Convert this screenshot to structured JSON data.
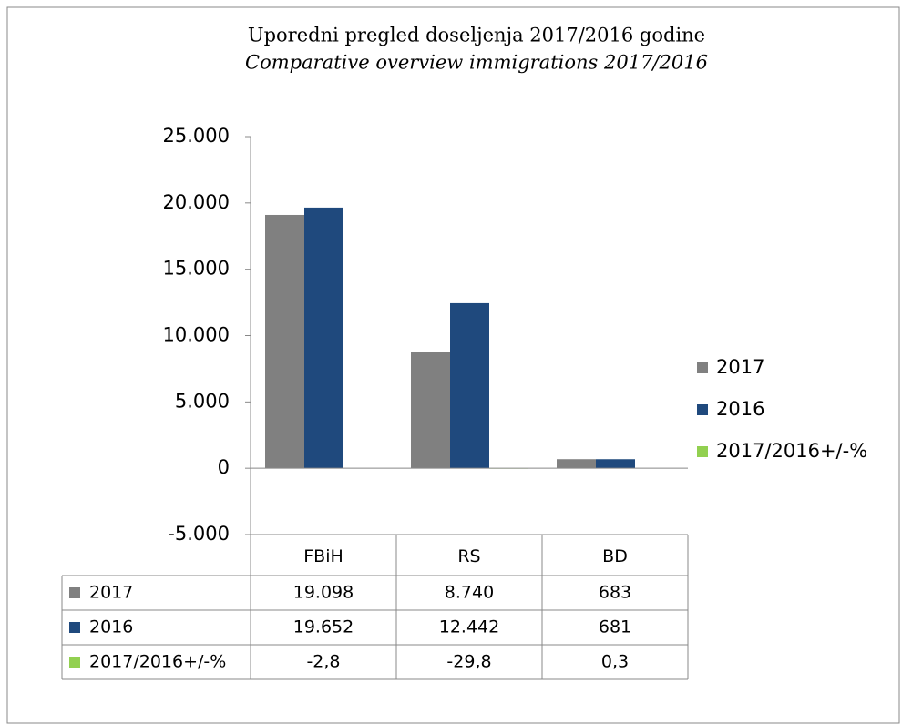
{
  "chart_data": {
    "type": "bar",
    "title": "Uporedni pregled doseljenja 2017/2016 godine",
    "subtitle": "Comparative overview immigrations 2017/2016",
    "categories": [
      "FBiH",
      "RS",
      "BD"
    ],
    "series": [
      {
        "name": "2017",
        "color": "#808080",
        "values": [
          19098,
          8740,
          683
        ],
        "value_labels": [
          "19.098",
          "8.740",
          "683"
        ]
      },
      {
        "name": "2016",
        "color": "#1f497d",
        "values": [
          19652,
          12442,
          681
        ],
        "value_labels": [
          "19.652",
          "12.442",
          "681"
        ]
      },
      {
        "name": "2017/2016+/-%",
        "color": "#92d050",
        "values": [
          -2.8,
          -29.8,
          0.3
        ],
        "value_labels": [
          "-2,8",
          "-29,8",
          "0,3"
        ]
      }
    ],
    "ylim": [
      -5000,
      25000
    ],
    "yticks": [
      {
        "value": -5000,
        "label": "-5.000"
      },
      0,
      {
        "value": 5000,
        "label": "5.000"
      },
      {
        "value": 10000,
        "label": "10.000"
      },
      {
        "value": 15000,
        "label": "15.000"
      },
      {
        "value": 20000,
        "label": "20.000"
      },
      {
        "value": 25000,
        "label": "25.000"
      }
    ],
    "legend": "right",
    "grid": false
  }
}
